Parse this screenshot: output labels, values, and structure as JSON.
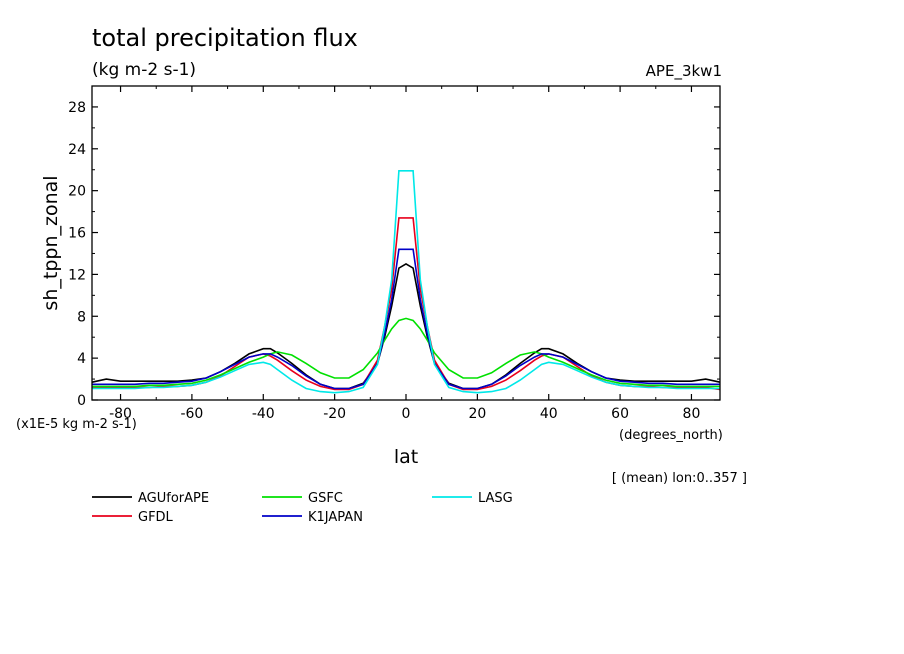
{
  "chart_data": {
    "type": "line",
    "title": "total precipitation flux",
    "units": "(kg m-2 s-1)",
    "experiment": "APE_3kw1",
    "xlabel": "lat",
    "xunits": "(degrees_north)",
    "ylabel": "sh_tppn_zonal",
    "yscale_note": "(x1E-5 kg m-2 s-1)",
    "footnote": "[ (mean) lon:0..357 ]",
    "xlim": [
      -88,
      88
    ],
    "ylim": [
      0,
      30
    ],
    "xticks": [
      -80,
      -60,
      -40,
      -20,
      0,
      20,
      40,
      60,
      80
    ],
    "yticks": [
      0,
      4,
      8,
      12,
      16,
      20,
      24,
      28
    ],
    "x": [
      -88,
      -84,
      -80,
      -76,
      -72,
      -68,
      -64,
      -60,
      -56,
      -52,
      -48,
      -44,
      -40,
      -38,
      -36,
      -32,
      -28,
      -24,
      -20,
      -16,
      -12,
      -8,
      -6,
      -4,
      -2,
      0,
      2,
      4,
      6,
      8,
      12,
      16,
      20,
      24,
      28,
      32,
      36,
      38,
      40,
      44,
      48,
      52,
      56,
      60,
      64,
      68,
      72,
      76,
      80,
      84,
      88
    ],
    "series": [
      {
        "name": "AGUforAPE",
        "color": "#000000",
        "values": [
          1.7,
          2.0,
          1.8,
          1.8,
          1.8,
          1.8,
          1.8,
          1.9,
          2.1,
          2.7,
          3.5,
          4.4,
          4.9,
          4.9,
          4.5,
          3.5,
          2.4,
          1.5,
          1.1,
          1.1,
          1.6,
          3.5,
          6.0,
          9.0,
          12.6,
          13.0,
          12.6,
          9.0,
          6.0,
          3.5,
          1.6,
          1.1,
          1.1,
          1.5,
          2.4,
          3.5,
          4.5,
          4.9,
          4.9,
          4.4,
          3.5,
          2.7,
          2.1,
          1.9,
          1.8,
          1.8,
          1.8,
          1.8,
          1.8,
          2.0,
          1.7
        ]
      },
      {
        "name": "GFDL",
        "color": "#e8001c",
        "values": [
          1.2,
          1.2,
          1.2,
          1.2,
          1.2,
          1.3,
          1.3,
          1.4,
          1.7,
          2.3,
          3.2,
          4.1,
          4.4,
          4.2,
          3.8,
          2.8,
          1.9,
          1.3,
          1.0,
          1.0,
          1.5,
          3.8,
          7.0,
          10.6,
          17.4,
          17.4,
          17.4,
          10.6,
          7.0,
          3.8,
          1.5,
          1.0,
          1.0,
          1.3,
          1.9,
          2.8,
          3.8,
          4.2,
          4.4,
          4.1,
          3.2,
          2.3,
          1.7,
          1.4,
          1.3,
          1.3,
          1.2,
          1.2,
          1.2,
          1.2,
          1.0
        ]
      },
      {
        "name": "GSFC",
        "color": "#00e000",
        "values": [
          1.3,
          1.3,
          1.3,
          1.3,
          1.4,
          1.4,
          1.5,
          1.6,
          1.9,
          2.4,
          3.0,
          3.6,
          4.1,
          4.4,
          4.6,
          4.3,
          3.5,
          2.6,
          2.1,
          2.1,
          2.9,
          4.5,
          5.7,
          6.8,
          7.6,
          7.8,
          7.6,
          6.8,
          5.7,
          4.5,
          2.9,
          2.1,
          2.1,
          2.6,
          3.5,
          4.3,
          4.6,
          4.4,
          4.1,
          3.6,
          3.0,
          2.4,
          1.9,
          1.6,
          1.5,
          1.4,
          1.4,
          1.3,
          1.3,
          1.3,
          1.3
        ]
      },
      {
        "name": "K1JAPAN",
        "color": "#0000c8",
        "values": [
          1.5,
          1.5,
          1.5,
          1.5,
          1.6,
          1.6,
          1.7,
          1.8,
          2.1,
          2.7,
          3.4,
          4.1,
          4.4,
          4.4,
          4.1,
          3.3,
          2.3,
          1.5,
          1.1,
          1.1,
          1.5,
          3.5,
          6.3,
          9.6,
          14.4,
          14.4,
          14.4,
          9.6,
          6.3,
          3.5,
          1.5,
          1.1,
          1.1,
          1.5,
          2.3,
          3.3,
          4.1,
          4.4,
          4.4,
          4.1,
          3.4,
          2.7,
          2.1,
          1.8,
          1.7,
          1.6,
          1.6,
          1.5,
          1.5,
          1.5,
          1.5
        ]
      },
      {
        "name": "LASG",
        "color": "#00e8e8",
        "values": [
          1.1,
          1.1,
          1.1,
          1.1,
          1.2,
          1.2,
          1.3,
          1.4,
          1.7,
          2.2,
          2.8,
          3.4,
          3.6,
          3.4,
          2.9,
          1.9,
          1.1,
          0.8,
          0.7,
          0.8,
          1.2,
          3.4,
          7.0,
          11.5,
          21.9,
          21.9,
          21.9,
          11.5,
          7.0,
          3.4,
          1.2,
          0.8,
          0.7,
          0.8,
          1.1,
          1.9,
          2.9,
          3.4,
          3.6,
          3.4,
          2.8,
          2.2,
          1.7,
          1.4,
          1.3,
          1.2,
          1.2,
          1.1,
          1.1,
          1.1,
          1.1
        ]
      }
    ]
  }
}
